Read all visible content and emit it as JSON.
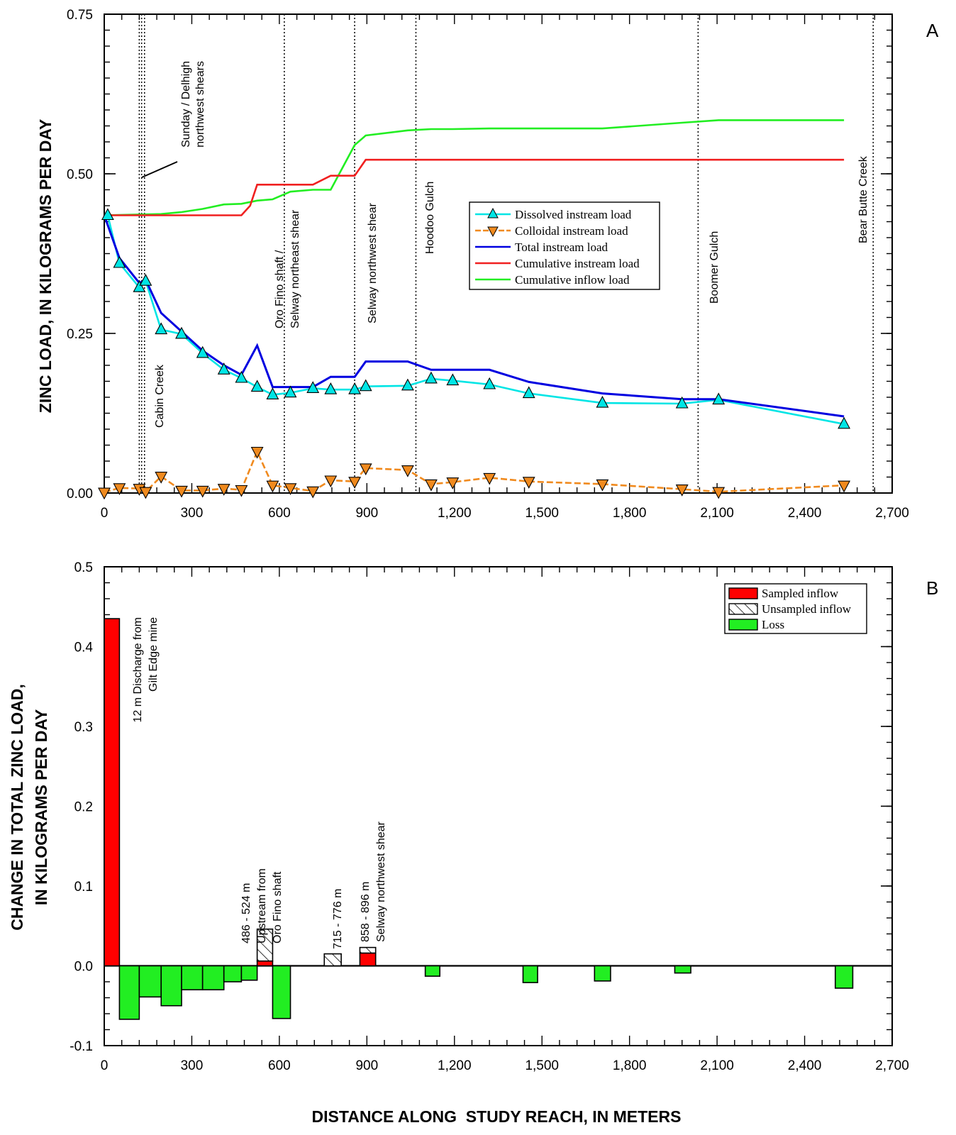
{
  "chart_data": [
    {
      "panel": "A",
      "type": "line",
      "ylabel": "ZINC LOAD, IN KILOGRAMS PER DAY",
      "xlabel": "",
      "xlim": [
        0,
        2700
      ],
      "ylim": [
        0,
        0.75
      ],
      "x_ticks": [
        "0",
        "300",
        "600",
        "900",
        "1,200",
        "1,500",
        "1,800",
        "2,100",
        "2,400",
        "2,700"
      ],
      "y_ticks": [
        "0.00",
        "0.25",
        "0.50",
        "0.75"
      ],
      "legend_position": "center-right",
      "series": [
        {
          "name": "Dissolved instream load",
          "color": "#00E5E5",
          "marker": "triangle-up",
          "x": [
            12,
            52,
            120,
            142,
            195,
            265,
            337,
            410,
            470,
            524,
            577,
            638,
            715,
            776,
            858,
            896,
            1040,
            1120,
            1194,
            1320,
            1455,
            1707,
            1980,
            2105,
            2535
          ],
          "y": [
            0.435,
            0.36,
            0.322,
            0.332,
            0.256,
            0.249,
            0.219,
            0.193,
            0.18,
            0.166,
            0.154,
            0.157,
            0.164,
            0.162,
            0.162,
            0.167,
            0.168,
            0.179,
            0.176,
            0.17,
            0.156,
            0.141,
            0.14,
            0.146,
            0.108
          ]
        },
        {
          "name": "Colloidal instream load",
          "color": "#F08A1E",
          "marker": "triangle-down",
          "x": [
            0,
            52,
            120,
            142,
            195,
            265,
            337,
            410,
            470,
            524,
            577,
            638,
            715,
            776,
            858,
            896,
            1040,
            1120,
            1194,
            1320,
            1455,
            1707,
            1980,
            2105,
            2535
          ],
          "y": [
            0.001,
            0.008,
            0.007,
            0.002,
            0.026,
            0.004,
            0.004,
            0.007,
            0.005,
            0.065,
            0.012,
            0.008,
            0.003,
            0.02,
            0.018,
            0.039,
            0.036,
            0.014,
            0.017,
            0.024,
            0.018,
            0.014,
            0.006,
            0.002,
            0.012
          ]
        },
        {
          "name": "Total instream load",
          "color": "#0000E0",
          "x": [
            0,
            52,
            120,
            142,
            195,
            265,
            337,
            410,
            470,
            524,
            577,
            638,
            715,
            776,
            858,
            896,
            1040,
            1120,
            1194,
            1320,
            1455,
            1707,
            1980,
            2105,
            2535
          ],
          "y": [
            0.435,
            0.368,
            0.329,
            0.334,
            0.282,
            0.253,
            0.223,
            0.2,
            0.185,
            0.231,
            0.166,
            0.166,
            0.166,
            0.182,
            0.182,
            0.206,
            0.206,
            0.193,
            0.193,
            0.193,
            0.174,
            0.156,
            0.147,
            0.147,
            0.12
          ]
        },
        {
          "name": "Cumulative instream load",
          "color": "#F02020",
          "x": [
            0,
            470,
            500,
            524,
            577,
            638,
            715,
            776,
            858,
            896,
            2535
          ],
          "y": [
            0.435,
            0.435,
            0.45,
            0.483,
            0.483,
            0.483,
            0.483,
            0.497,
            0.497,
            0.522,
            0.522
          ]
        },
        {
          "name": "Cumulative inflow load",
          "color": "#22EE22",
          "x": [
            0,
            195,
            265,
            337,
            410,
            470,
            524,
            577,
            638,
            715,
            776,
            858,
            896,
            1040,
            1120,
            1194,
            1320,
            1455,
            1707,
            1980,
            2105,
            2535
          ],
          "y": [
            0.435,
            0.437,
            0.44,
            0.445,
            0.452,
            0.453,
            0.458,
            0.46,
            0.472,
            0.475,
            0.475,
            0.545,
            0.56,
            0.568,
            0.57,
            0.57,
            0.571,
            0.571,
            0.571,
            0.58,
            0.584,
            0.584
          ]
        }
      ],
      "vertical_lines": [
        {
          "x": 120,
          "label": ""
        },
        {
          "x": 128,
          "label": "Sunday / Delhigh northwest shears"
        },
        {
          "x": 138,
          "label": "Cabin Creek"
        },
        {
          "x": 617,
          "label": "Oro Fino shaft / Selway northeast shear"
        },
        {
          "x": 858,
          "label": "Selway northwest shear"
        },
        {
          "x": 1068,
          "label": "Hoodoo Gulch"
        },
        {
          "x": 2035,
          "label": "Boomer Gulch"
        },
        {
          "x": 2635,
          "label": "Bear Butte Creek"
        }
      ]
    },
    {
      "panel": "B",
      "type": "bar",
      "ylabel": "CHANGE IN TOTAL ZINC LOAD, IN KILOGRAMS PER DAY",
      "xlabel": "DISTANCE ALONG  STUDY REACH, IN METERS",
      "xlim": [
        0,
        2700
      ],
      "ylim": [
        -0.1,
        0.5
      ],
      "x_ticks": [
        "0",
        "300",
        "600",
        "900",
        "1,200",
        "1,500",
        "1,800",
        "2,100",
        "2,400",
        "2,700"
      ],
      "y_ticks": [
        "-0.1",
        "0.0",
        "0.1",
        "0.2",
        "0.3",
        "0.4",
        "0.5"
      ],
      "legend_position": "top-right",
      "legend": [
        {
          "name": "Sampled inflow",
          "color": "#FF0000",
          "pattern": "solid"
        },
        {
          "name": "Unsampled inflow",
          "color": "#FFFFFF",
          "pattern": "hatched"
        },
        {
          "name": "Loss",
          "color": "#22EE22",
          "pattern": "solid"
        }
      ],
      "bars": [
        {
          "x0": 0,
          "x1": 52,
          "value": 0.435,
          "kind": "sampled"
        },
        {
          "x0": 52,
          "x1": 120,
          "value": -0.067,
          "kind": "loss"
        },
        {
          "x0": 120,
          "x1": 195,
          "value": -0.039,
          "kind": "loss"
        },
        {
          "x0": 195,
          "x1": 265,
          "value": -0.05,
          "kind": "loss"
        },
        {
          "x0": 265,
          "x1": 337,
          "value": -0.03,
          "kind": "loss"
        },
        {
          "x0": 337,
          "x1": 410,
          "value": -0.03,
          "kind": "loss"
        },
        {
          "x0": 410,
          "x1": 470,
          "value": -0.02,
          "kind": "loss"
        },
        {
          "x0": 470,
          "x1": 524,
          "value": -0.018,
          "kind": "loss"
        },
        {
          "x0": 524,
          "x1": 577,
          "value": 0.006,
          "kind": "sampled"
        },
        {
          "x0": 524,
          "x1": 577,
          "value": 0.046,
          "base": 0.006,
          "kind": "unsampled"
        },
        {
          "x0": 577,
          "x1": 638,
          "value": -0.066,
          "kind": "loss"
        },
        {
          "x0": 754,
          "x1": 812,
          "value": 0.015,
          "kind": "unsampled"
        },
        {
          "x0": 876,
          "x1": 930,
          "value": 0.016,
          "kind": "sampled"
        },
        {
          "x0": 876,
          "x1": 930,
          "value": 0.023,
          "base": 0.016,
          "kind": "unsampled"
        },
        {
          "x0": 1100,
          "x1": 1150,
          "value": -0.013,
          "kind": "loss"
        },
        {
          "x0": 1435,
          "x1": 1485,
          "value": -0.021,
          "kind": "loss"
        },
        {
          "x0": 1680,
          "x1": 1735,
          "value": -0.019,
          "kind": "loss"
        },
        {
          "x0": 1955,
          "x1": 2010,
          "value": -0.009,
          "kind": "loss"
        },
        {
          "x0": 2505,
          "x1": 2565,
          "value": -0.028,
          "kind": "loss"
        }
      ],
      "annotations": [
        {
          "x": 40,
          "y": 0.44,
          "lines": [
            "12 m Discharge from",
            "Gilt Edge mine"
          ]
        },
        {
          "x": 522,
          "y": 0.055,
          "lines": [
            "486 - 524 m",
            "Upstream from",
            "Oro Fino shaft"
          ]
        },
        {
          "x": 792,
          "y": 0.025,
          "lines": [
            "715 - 776 m"
          ]
        },
        {
          "x": 892,
          "y": 0.03,
          "lines": [
            "858 - 896 m",
            "Selway northwest shear"
          ]
        }
      ]
    }
  ],
  "panel_labels": {
    "a": "A",
    "b": "B"
  }
}
